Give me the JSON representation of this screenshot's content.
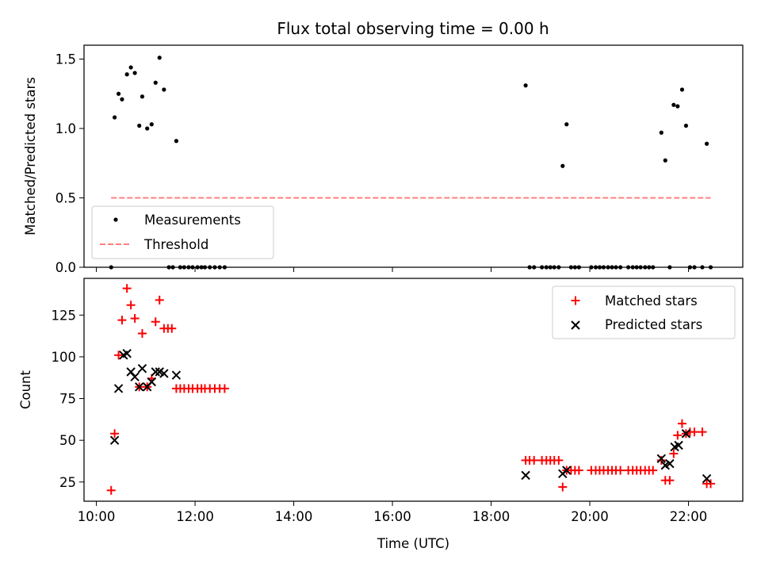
{
  "title": "Flux total observing time = 0.00 h",
  "colors": {
    "measurement": "#000000",
    "threshold": "#ff7f7f",
    "matched": "#ff0000",
    "predicted": "#000000"
  },
  "chart_data": [
    {
      "type": "scatter",
      "panel": "top",
      "title": "Flux total observing time = 0.00 h",
      "ylabel": "Matched/Predicted stars",
      "xlabel": "",
      "xlim": [
        9.75,
        23.1
      ],
      "ylim": [
        0,
        1.6
      ],
      "xticks": [
        10,
        12,
        14,
        16,
        18,
        20,
        22
      ],
      "yticks": [
        {
          "value": 0.0,
          "label": "0.0"
        },
        {
          "value": 0.5,
          "label": "0.5"
        },
        {
          "value": 1.0,
          "label": "1.0"
        },
        {
          "value": 1.5,
          "label": "1.5"
        }
      ],
      "legend": {
        "position": "lower-left",
        "entries": [
          "Measurements",
          "Threshold"
        ]
      },
      "series": [
        {
          "name": "Measurements",
          "marker": "dot",
          "x": [
            10.3,
            10.37,
            10.45,
            10.52,
            10.62,
            10.7,
            10.78,
            10.87,
            10.93,
            11.03,
            11.12,
            11.2,
            11.28,
            11.37,
            11.62,
            11.47,
            11.55,
            11.7,
            11.78,
            11.87,
            11.95,
            12.05,
            12.13,
            12.2,
            12.3,
            12.4,
            12.5,
            12.6,
            18.7,
            18.78,
            18.87,
            19.03,
            19.12,
            19.2,
            19.28,
            19.37,
            19.45,
            19.53,
            19.62,
            19.7,
            19.78,
            20.03,
            20.12,
            20.2,
            20.28,
            20.37,
            20.45,
            20.53,
            20.62,
            20.78,
            20.87,
            20.95,
            21.03,
            21.12,
            21.2,
            21.28,
            21.45,
            21.53,
            21.62,
            21.7,
            21.78,
            21.87,
            21.95,
            22.03,
            22.12,
            22.28,
            22.37,
            22.45
          ],
          "y": [
            0.0,
            1.08,
            1.25,
            1.21,
            1.39,
            1.44,
            1.4,
            1.02,
            1.23,
            1.0,
            1.03,
            1.33,
            1.51,
            1.28,
            0.91,
            0.0,
            0.0,
            0.0,
            0.0,
            0.0,
            0.0,
            0.0,
            0.0,
            0.0,
            0.0,
            0.0,
            0.0,
            0.0,
            1.31,
            0.0,
            0.0,
            0.0,
            0.0,
            0.0,
            0.0,
            0.0,
            0.73,
            1.03,
            0.0,
            0.0,
            0.0,
            0.0,
            0.0,
            0.0,
            0.0,
            0.0,
            0.0,
            0.0,
            0.0,
            0.0,
            0.0,
            0.0,
            0.0,
            0.0,
            0.0,
            0.0,
            0.97,
            0.77,
            0.0,
            1.17,
            1.16,
            1.28,
            1.02,
            0.0,
            0.0,
            0.0,
            0.89,
            0.0
          ]
        },
        {
          "name": "Threshold",
          "marker": "dashed-line",
          "x": [
            10.3,
            22.45
          ],
          "y": [
            0.5,
            0.5
          ]
        }
      ]
    },
    {
      "type": "scatter",
      "panel": "bottom",
      "title": "",
      "ylabel": "Count",
      "xlabel": "Time (UTC)",
      "xlim": [
        9.75,
        23.1
      ],
      "ylim": [
        13.5,
        147
      ],
      "xticks": [
        {
          "value": 10,
          "label": "10:00"
        },
        {
          "value": 12,
          "label": "12:00"
        },
        {
          "value": 14,
          "label": "14:00"
        },
        {
          "value": 16,
          "label": "16:00"
        },
        {
          "value": 18,
          "label": "18:00"
        },
        {
          "value": 20,
          "label": "20:00"
        },
        {
          "value": 22,
          "label": "22:00"
        }
      ],
      "yticks": [
        {
          "value": 25,
          "label": "25"
        },
        {
          "value": 50,
          "label": "50"
        },
        {
          "value": 75,
          "label": "75"
        },
        {
          "value": 100,
          "label": "100"
        },
        {
          "value": 125,
          "label": "125"
        }
      ],
      "legend": {
        "position": "top-right",
        "entries": [
          "Matched stars",
          "Predicted stars"
        ]
      },
      "series": [
        {
          "name": "Matched stars",
          "marker": "plus",
          "x": [
            10.3,
            10.37,
            10.45,
            10.52,
            10.62,
            10.7,
            10.78,
            10.87,
            10.93,
            11.03,
            11.12,
            11.2,
            11.28,
            11.37,
            11.45,
            11.53,
            11.62,
            11.7,
            11.78,
            11.87,
            11.95,
            12.05,
            12.13,
            12.2,
            12.3,
            12.4,
            12.5,
            12.6,
            18.7,
            18.78,
            18.87,
            19.03,
            19.12,
            19.2,
            19.28,
            19.37,
            19.45,
            19.53,
            19.62,
            19.7,
            19.78,
            20.03,
            20.12,
            20.2,
            20.28,
            20.37,
            20.45,
            20.53,
            20.62,
            20.78,
            20.87,
            20.95,
            21.03,
            21.12,
            21.2,
            21.28,
            21.45,
            21.53,
            21.62,
            21.7,
            21.78,
            21.87,
            21.95,
            22.03,
            22.12,
            22.28,
            22.37,
            22.45
          ],
          "y": [
            20,
            54,
            101,
            122,
            141,
            131,
            123,
            82,
            114,
            82,
            87,
            121,
            134,
            117,
            117,
            117,
            81,
            81,
            81,
            81,
            81,
            81,
            81,
            81,
            81,
            81,
            81,
            81,
            38,
            38,
            38,
            38,
            38,
            38,
            38,
            38,
            22,
            32,
            32,
            32,
            32,
            32,
            32,
            32,
            32,
            32,
            32,
            32,
            32,
            32,
            32,
            32,
            32,
            32,
            32,
            32,
            38,
            26,
            26,
            42,
            53,
            60,
            54,
            55,
            55,
            55,
            24,
            24
          ]
        },
        {
          "name": "Predicted stars",
          "marker": "x",
          "x": [
            10.37,
            10.45,
            10.55,
            10.62,
            10.7,
            10.78,
            10.87,
            10.93,
            11.03,
            11.12,
            11.2,
            11.28,
            11.37,
            11.62,
            18.7,
            19.45,
            19.53,
            21.45,
            21.53,
            21.62,
            21.72,
            21.8,
            21.95,
            22.37
          ],
          "y": [
            50,
            81,
            101,
            102,
            91,
            88,
            82,
            93,
            82,
            85,
            91,
            91,
            90,
            89,
            29,
            30,
            32,
            39,
            35,
            36,
            46,
            47,
            54,
            27
          ]
        }
      ]
    }
  ]
}
